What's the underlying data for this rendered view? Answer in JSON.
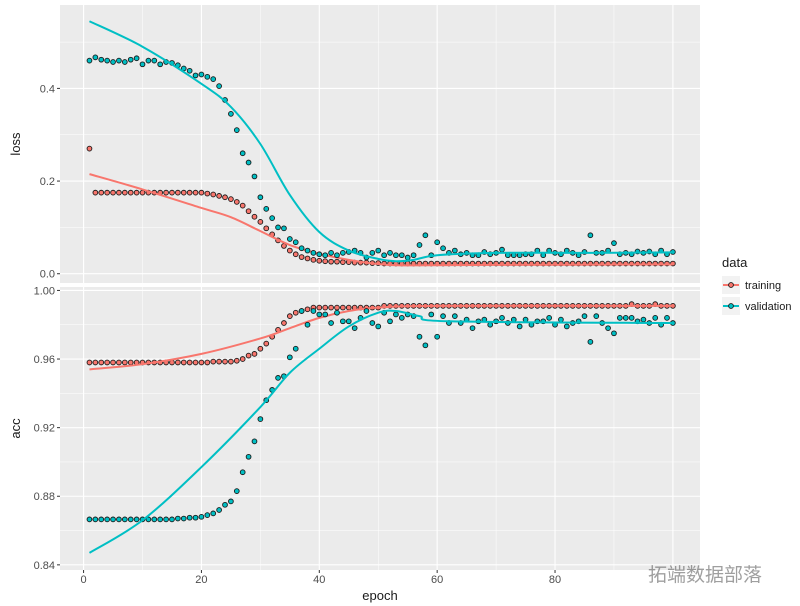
{
  "chart_data": [
    {
      "type": "scatter",
      "panel": "loss",
      "ylabel": "loss",
      "xlabel": "epoch",
      "xlim": [
        -4,
        104.6
      ],
      "ylim": [
        -0.02,
        0.58
      ],
      "x_ticks": [
        0,
        20,
        40,
        60,
        80
      ],
      "y_ticks": [
        0.0,
        0.2,
        0.4
      ],
      "y_tick_labels": [
        "0.0",
        "0.2",
        "0.4"
      ],
      "grid": true,
      "series": [
        {
          "name": "training",
          "color": "#F8766D",
          "values": [
            0.27,
            0.175,
            0.175,
            0.175,
            0.175,
            0.175,
            0.175,
            0.175,
            0.175,
            0.175,
            0.175,
            0.175,
            0.175,
            0.175,
            0.175,
            0.175,
            0.175,
            0.175,
            0.175,
            0.175,
            0.173,
            0.171,
            0.168,
            0.165,
            0.161,
            0.155,
            0.147,
            0.135,
            0.123,
            0.112,
            0.098,
            0.085,
            0.072,
            0.06,
            0.05,
            0.042,
            0.036,
            0.033,
            0.03,
            0.028,
            0.027,
            0.026,
            0.026,
            0.025,
            0.025,
            0.024,
            0.024,
            0.024,
            0.023,
            0.023,
            0.022,
            0.022,
            0.022,
            0.022,
            0.022,
            0.022,
            0.022,
            0.022,
            0.022,
            0.022,
            0.022,
            0.022,
            0.022,
            0.022,
            0.022,
            0.022,
            0.022,
            0.022,
            0.022,
            0.022,
            0.022,
            0.022,
            0.022,
            0.022,
            0.022,
            0.022,
            0.022,
            0.022,
            0.022,
            0.022,
            0.022,
            0.022,
            0.022,
            0.022,
            0.022,
            0.022,
            0.022,
            0.022,
            0.022,
            0.022,
            0.022,
            0.022,
            0.022,
            0.022,
            0.022,
            0.022,
            0.022,
            0.022,
            0.022,
            0.022
          ],
          "smooth": [
            [
              1,
              0.215
            ],
            [
              10,
              0.182
            ],
            [
              20,
              0.142
            ],
            [
              25,
              0.122
            ],
            [
              30,
              0.092
            ],
            [
              35,
              0.062
            ],
            [
              40,
              0.043
            ],
            [
              45,
              0.03
            ],
            [
              50,
              0.021
            ],
            [
              55,
              0.018
            ],
            [
              70,
              0.019
            ],
            [
              100,
              0.02
            ]
          ]
        },
        {
          "name": "validation",
          "color": "#00BFC4",
          "values": [
            0.46,
            0.467,
            0.462,
            0.46,
            0.457,
            0.46,
            0.457,
            0.462,
            0.465,
            0.452,
            0.46,
            0.46,
            0.452,
            0.457,
            0.455,
            0.45,
            0.443,
            0.438,
            0.428,
            0.43,
            0.425,
            0.42,
            0.405,
            0.375,
            0.345,
            0.31,
            0.26,
            0.24,
            0.21,
            0.165,
            0.14,
            0.12,
            0.1,
            0.098,
            0.075,
            0.068,
            0.055,
            0.05,
            0.045,
            0.042,
            0.04,
            0.045,
            0.04,
            0.045,
            0.047,
            0.05,
            0.045,
            0.035,
            0.045,
            0.05,
            0.04,
            0.045,
            0.04,
            0.04,
            0.035,
            0.04,
            0.062,
            0.083,
            0.04,
            0.068,
            0.055,
            0.045,
            0.05,
            0.042,
            0.045,
            0.04,
            0.04,
            0.047,
            0.042,
            0.045,
            0.052,
            0.04,
            0.04,
            0.04,
            0.042,
            0.042,
            0.05,
            0.04,
            0.05,
            0.045,
            0.042,
            0.05,
            0.045,
            0.04,
            0.047,
            0.083,
            0.045,
            0.045,
            0.05,
            0.066,
            0.042,
            0.045,
            0.042,
            0.048,
            0.045,
            0.048,
            0.042,
            0.05,
            0.042,
            0.047
          ],
          "smooth": [
            [
              1,
              0.545
            ],
            [
              10,
              0.49
            ],
            [
              20,
              0.41
            ],
            [
              25,
              0.36
            ],
            [
              30,
              0.28
            ],
            [
              35,
              0.17
            ],
            [
              40,
              0.09
            ],
            [
              45,
              0.05
            ],
            [
              50,
              0.032
            ],
            [
              53,
              0.027
            ],
            [
              56,
              0.03
            ],
            [
              60,
              0.04
            ],
            [
              70,
              0.045
            ],
            [
              85,
              0.045
            ],
            [
              100,
              0.046
            ]
          ]
        }
      ]
    },
    {
      "type": "scatter",
      "panel": "acc",
      "ylabel": "acc",
      "xlabel": "epoch",
      "xlim": [
        -4,
        104.6
      ],
      "ylim": [
        0.837,
        1.002
      ],
      "x_ticks": [
        0,
        20,
        40,
        60,
        80
      ],
      "y_ticks": [
        0.84,
        0.88,
        0.92,
        0.96,
        1.0
      ],
      "y_tick_labels": [
        "0.84",
        "0.88",
        "0.92",
        "0.96",
        "1.00"
      ],
      "grid": true,
      "series": [
        {
          "name": "training",
          "color": "#F8766D",
          "values": [
            0.958,
            0.958,
            0.958,
            0.958,
            0.958,
            0.958,
            0.958,
            0.958,
            0.958,
            0.958,
            0.958,
            0.958,
            0.958,
            0.958,
            0.958,
            0.958,
            0.958,
            0.958,
            0.958,
            0.958,
            0.958,
            0.9585,
            0.9585,
            0.9585,
            0.9585,
            0.959,
            0.96,
            0.962,
            0.963,
            0.966,
            0.969,
            0.973,
            0.977,
            0.981,
            0.985,
            0.987,
            0.988,
            0.989,
            0.99,
            0.99,
            0.99,
            0.99,
            0.99,
            0.99,
            0.99,
            0.99,
            0.99,
            0.99,
            0.99,
            0.99,
            0.991,
            0.991,
            0.991,
            0.991,
            0.991,
            0.991,
            0.991,
            0.991,
            0.991,
            0.991,
            0.991,
            0.991,
            0.991,
            0.991,
            0.991,
            0.991,
            0.991,
            0.991,
            0.991,
            0.991,
            0.991,
            0.991,
            0.991,
            0.991,
            0.991,
            0.991,
            0.991,
            0.991,
            0.991,
            0.991,
            0.991,
            0.991,
            0.991,
            0.991,
            0.991,
            0.991,
            0.991,
            0.991,
            0.991,
            0.991,
            0.991,
            0.991,
            0.992,
            0.991,
            0.991,
            0.991,
            0.992,
            0.991,
            0.991,
            0.991
          ],
          "smooth": [
            [
              1,
              0.954
            ],
            [
              10,
              0.957
            ],
            [
              20,
              0.963
            ],
            [
              30,
              0.972
            ],
            [
              35,
              0.978
            ],
            [
              40,
              0.984
            ],
            [
              45,
              0.988
            ],
            [
              50,
              0.99
            ],
            [
              60,
              0.991
            ],
            [
              100,
              0.991
            ]
          ]
        },
        {
          "name": "validation",
          "color": "#00BFC4",
          "values": [
            0.8665,
            0.8665,
            0.8665,
            0.8665,
            0.8665,
            0.8665,
            0.8665,
            0.8665,
            0.8665,
            0.8665,
            0.8665,
            0.8665,
            0.8665,
            0.8665,
            0.8665,
            0.867,
            0.867,
            0.8675,
            0.8675,
            0.868,
            0.869,
            0.87,
            0.872,
            0.875,
            0.877,
            0.883,
            0.894,
            0.903,
            0.912,
            0.925,
            0.936,
            0.942,
            0.949,
            0.95,
            0.961,
            0.966,
            0.988,
            0.98,
            0.988,
            0.986,
            0.986,
            0.981,
            0.987,
            0.982,
            0.982,
            0.978,
            0.984,
            0.988,
            0.981,
            0.979,
            0.987,
            0.982,
            0.986,
            0.984,
            0.986,
            0.985,
            0.973,
            0.968,
            0.986,
            0.973,
            0.985,
            0.981,
            0.985,
            0.981,
            0.983,
            0.978,
            0.982,
            0.983,
            0.98,
            0.982,
            0.984,
            0.981,
            0.983,
            0.979,
            0.983,
            0.98,
            0.982,
            0.982,
            0.984,
            0.98,
            0.983,
            0.979,
            0.981,
            0.982,
            0.985,
            0.97,
            0.985,
            0.981,
            0.978,
            0.975,
            0.984,
            0.984,
            0.984,
            0.982,
            0.983,
            0.981,
            0.984,
            0.98,
            0.984,
            0.981
          ],
          "smooth": [
            [
              1,
              0.847
            ],
            [
              10,
              0.866
            ],
            [
              20,
              0.897
            ],
            [
              30,
              0.932
            ],
            [
              35,
              0.952
            ],
            [
              40,
              0.966
            ],
            [
              45,
              0.979
            ],
            [
              50,
              0.987
            ],
            [
              53,
              0.988
            ],
            [
              57,
              0.985
            ],
            [
              62,
              0.982
            ],
            [
              100,
              0.981
            ]
          ]
        }
      ]
    }
  ],
  "x_tick_labels": [
    "0",
    "20",
    "40",
    "60",
    "80"
  ],
  "xlabel": "epoch",
  "legend": {
    "title": "data",
    "position": "right",
    "items": [
      "training",
      "validation"
    ]
  },
  "panel_background": "#EBEBEB",
  "point_outline": "#1a1a1a",
  "watermark": "拓端数据部落"
}
